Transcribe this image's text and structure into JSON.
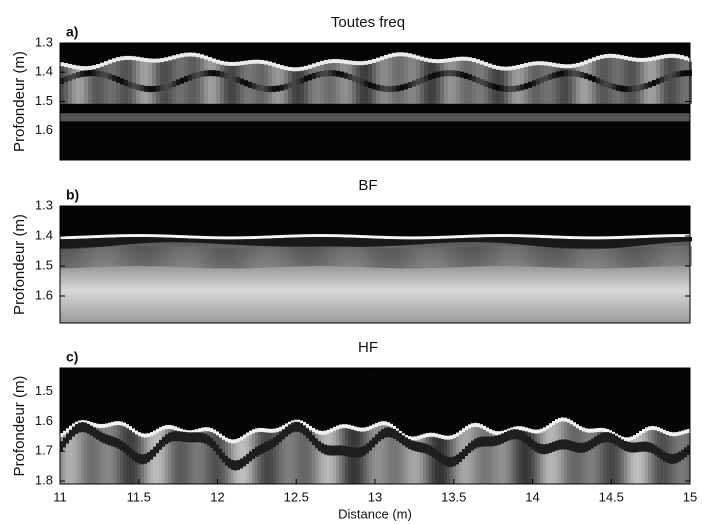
{
  "chart_data": [
    {
      "type": "image",
      "panel_label": "a)",
      "title": "Toutes  freq",
      "ylabel": "Profondeur (m)",
      "y_inverted": true,
      "ylim": [
        1.3,
        1.7
      ],
      "yticks": [
        1.3,
        1.4,
        1.5,
        1.6
      ]
    },
    {
      "type": "image",
      "panel_label": "b)",
      "title": "BF",
      "ylabel": "Profondeur (m)",
      "y_inverted": true,
      "ylim": [
        1.3,
        1.69
      ],
      "yticks": [
        1.3,
        1.4,
        1.5,
        1.6
      ]
    },
    {
      "type": "image",
      "panel_label": "c)",
      "title": "HF",
      "ylabel": "Profondeur (m)",
      "xlabel": "Distance (m)",
      "y_inverted": true,
      "ylim": [
        1.42,
        1.81
      ],
      "yticks": [
        1.5,
        1.6,
        1.7,
        1.8
      ],
      "xlim": [
        11,
        15
      ],
      "xticks": [
        11,
        11.5,
        12,
        12.5,
        13,
        13.5,
        14,
        14.5,
        15
      ]
    }
  ]
}
